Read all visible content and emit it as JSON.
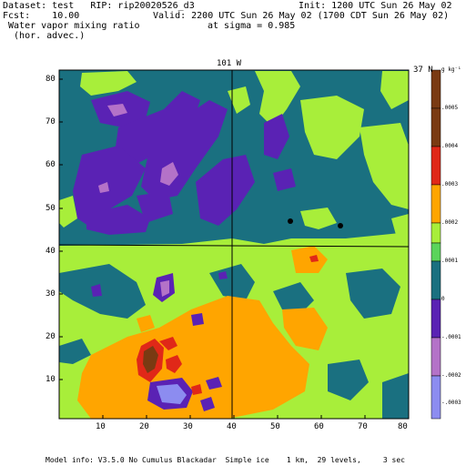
{
  "header": {
    "line1_left": "Dataset: test   RIP: rip20020526_d3",
    "line1_right": "Init: 1200 UTC Sun 26 May 02",
    "line2_left": "Fcst:    10.00",
    "line2_right": "Valid: 2200 UTC Sun 26 May 02 (1700 CDT Sun 26 May 02)",
    "line3_left": " Water vapor mixing ratio",
    "line3_right": "at sigma = 0.985",
    "line4_left": "  (hor. advec.)"
  },
  "map": {
    "top_label": "101 W",
    "right_label": "37 N",
    "x_ticks": [
      "10",
      "20",
      "30",
      "40",
      "50",
      "60",
      "70",
      "80"
    ],
    "y_ticks": [
      "10",
      "20",
      "30",
      "40",
      "50",
      "60",
      "70",
      "80"
    ]
  },
  "colorbar": {
    "unit": "g kg⁻¹",
    "labels": [
      ".0005",
      ".0004",
      ".0003",
      ".0002",
      ".0001",
      "0",
      "-.0001",
      "-.0002",
      "-.0003"
    ],
    "colors": {
      "brown": "#7a3a12",
      "red": "#e02818",
      "orange": "#ffa500",
      "light_green": "#a8ee3a",
      "green": "#5ad45a",
      "teal": "#1a7080",
      "purple": "#5a22b4",
      "mauve": "#b472c8",
      "lavender": "#8c8cf0"
    }
  },
  "footer": "Model info: V3.5.0 No Cumulus Blackadar  Simple ice    1 km,  29 levels,     3 sec"
}
